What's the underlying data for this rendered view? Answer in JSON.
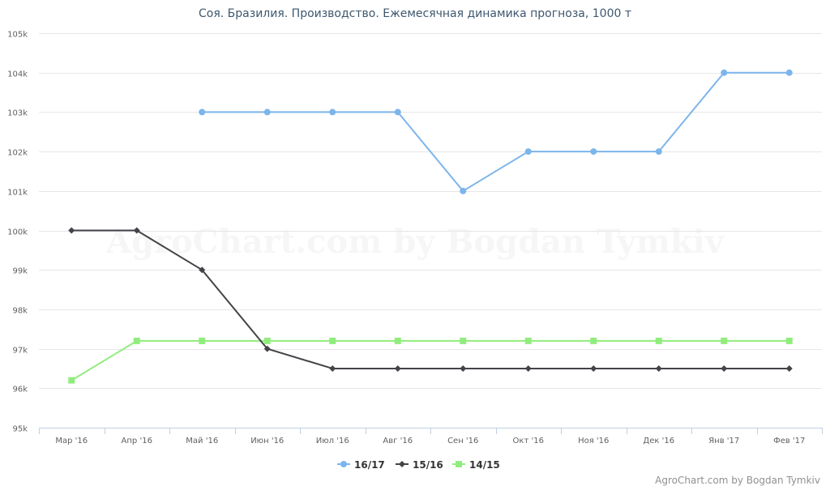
{
  "chart_data": {
    "type": "line",
    "title": "Соя. Бразилия. Производство. Ежемесячная динамика прогноза, 1000 т",
    "categories": [
      "Мар '16",
      "Апр '16",
      "Май '16",
      "Июн '16",
      "Июл '16",
      "Авг '16",
      "Сен '16",
      "Окт '16",
      "Ноя '16",
      "Дек '16",
      "Янв '17",
      "Фев '17"
    ],
    "ylim": [
      95000,
      105000
    ],
    "yticks": [
      95000,
      96000,
      97000,
      98000,
      99000,
      100000,
      101000,
      102000,
      103000,
      104000,
      105000
    ],
    "ytick_labels": [
      "95k",
      "96k",
      "97k",
      "98k",
      "99k",
      "100k",
      "101k",
      "102k",
      "103k",
      "104k",
      "105k"
    ],
    "grid": true,
    "legend_position": "bottom-center",
    "series": [
      {
        "name": "16/17",
        "color": "#7cb5ec",
        "marker": "circle",
        "values": [
          null,
          null,
          103000,
          103000,
          103000,
          103000,
          101000,
          102000,
          102000,
          102000,
          104000,
          104000
        ]
      },
      {
        "name": "15/16",
        "color": "#434348",
        "marker": "diamond",
        "values": [
          100000,
          100000,
          99000,
          97000,
          96500,
          96500,
          96500,
          96500,
          96500,
          96500,
          96500,
          96500
        ]
      },
      {
        "name": "14/15",
        "color": "#90ed7d",
        "marker": "square",
        "values": [
          96200,
          97200,
          97200,
          97200,
          97200,
          97200,
          97200,
          97200,
          97200,
          97200,
          97200,
          97200
        ]
      }
    ]
  },
  "watermark": "AgroChart.com by Bogdan Tymkiv",
  "credit": "AgroChart.com by Bogdan Tymkiv"
}
